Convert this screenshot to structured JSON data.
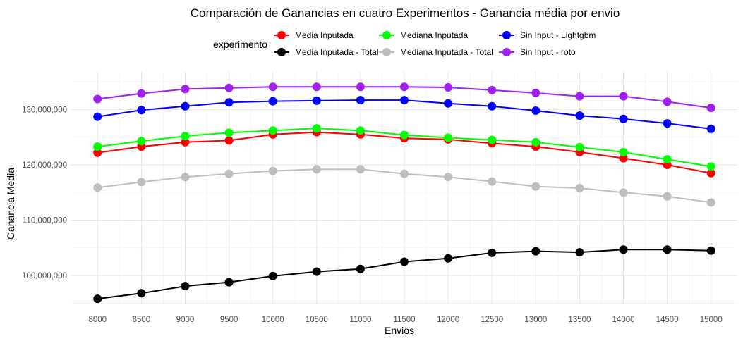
{
  "chart_data": {
    "type": "line",
    "title": "Comparación de Ganancias en cuatro Experimentos - Ganancia média por envio",
    "xlabel": "Envios",
    "ylabel": "Ganancia Media",
    "legend_title": "experimento",
    "legend_position": "top",
    "grid": true,
    "x": [
      8000,
      8500,
      9000,
      9500,
      10000,
      10500,
      11000,
      11500,
      12000,
      12500,
      13000,
      13500,
      14000,
      14500,
      15000
    ],
    "x_tick_labels": [
      "8000",
      "8500",
      "9000",
      "9500",
      "10000",
      "10500",
      "11000",
      "11500",
      "12000",
      "12500",
      "13000",
      "13500",
      "14000",
      "14500",
      "15000"
    ],
    "y_ticks": [
      100000000,
      110000000,
      120000000,
      130000000
    ],
    "y_tick_labels": [
      "100,000,000",
      "110,000,000",
      "120,000,000",
      "130,000,000"
    ],
    "xlim": [
      7700,
      15300
    ],
    "ylim": [
      94800000,
      136800000
    ],
    "series": [
      {
        "name": "Media Inputada",
        "color": "#ff0000",
        "values": [
          122200000,
          123300000,
          124100000,
          124400000,
          125500000,
          125900000,
          125500000,
          124800000,
          124600000,
          123900000,
          123300000,
          122300000,
          121200000,
          120000000,
          118500000
        ]
      },
      {
        "name": "Media Inputada - Total",
        "color": "#000000",
        "values": [
          95800000,
          96800000,
          98100000,
          98800000,
          99900000,
          100700000,
          101200000,
          102500000,
          103100000,
          104100000,
          104400000,
          104200000,
          104700000,
          104700000,
          104500000
        ]
      },
      {
        "name": "Mediana Inputada",
        "color": "#00ff00",
        "values": [
          123300000,
          124300000,
          125200000,
          125800000,
          126200000,
          126600000,
          126200000,
          125400000,
          124900000,
          124500000,
          124100000,
          123200000,
          122300000,
          121000000,
          119700000
        ]
      },
      {
        "name": "Mediana Inputada - Total",
        "color": "#bebebe",
        "values": [
          115900000,
          116900000,
          117800000,
          118400000,
          118900000,
          119200000,
          119200000,
          118400000,
          117800000,
          117000000,
          116100000,
          115800000,
          115000000,
          114300000,
          113200000
        ]
      },
      {
        "name": "Sin Input - Lightgbm",
        "color": "#0000ff",
        "values": [
          128700000,
          129900000,
          130600000,
          131300000,
          131500000,
          131600000,
          131700000,
          131700000,
          131100000,
          130600000,
          129800000,
          128900000,
          128300000,
          127500000,
          126500000
        ]
      },
      {
        "name": "Sin Input - roto",
        "color": "#a020f0",
        "values": [
          131900000,
          132900000,
          133700000,
          133900000,
          134100000,
          134100000,
          134100000,
          134100000,
          134000000,
          133500000,
          133000000,
          132400000,
          132400000,
          131400000,
          130300000
        ]
      }
    ]
  }
}
